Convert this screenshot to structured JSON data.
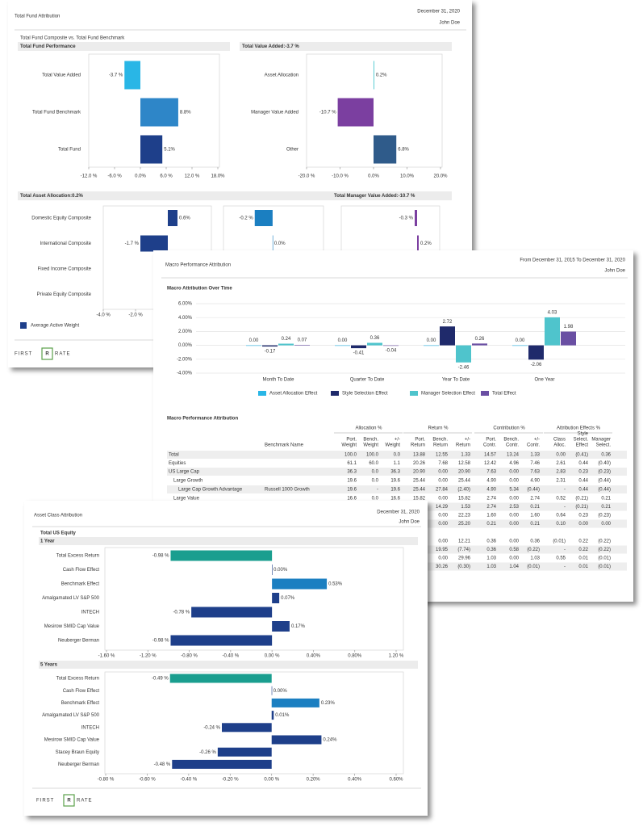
{
  "fund": {
    "title": "Total Fund Attribution",
    "date": "December 31, 2020",
    "name": "John Doe",
    "subtitle": "Total Fund Composite vs. Total Fund Benchmark",
    "performance": {
      "type": "hbar",
      "title": "Total Fund Performance",
      "categories": [
        "Total Value Added",
        "Total Fund Benchmark",
        "Total Fund"
      ],
      "values": [
        -3.7,
        8.8,
        5.1
      ],
      "value_labels": [
        "-3.7 %",
        "8.8%",
        "5.1%"
      ],
      "colors": [
        "#29b6e6",
        "#2e86c8",
        "#1e3f8a"
      ],
      "xlim": [
        -12,
        18
      ],
      "xticks": [
        {
          "value": -12,
          "label": "-12.0 %"
        },
        {
          "value": -6,
          "label": "-6.0 %"
        },
        {
          "value": 0,
          "label": "0.0%"
        },
        {
          "value": 6,
          "label": "6.0 %"
        },
        {
          "value": 12,
          "label": "12.0 %"
        },
        {
          "value": 18,
          "label": "18.0%"
        }
      ]
    },
    "value_added": {
      "type": "hbar",
      "title": "Total Value Added:-3.7 %",
      "categories": [
        "Asset Allocation",
        "Manager Value Added",
        "Other"
      ],
      "values": [
        0.2,
        -10.7,
        6.8
      ],
      "value_labels": [
        "0.2%",
        "-10.7 %",
        "6.8%"
      ],
      "colors": [
        "#3cc3cc",
        "#7b3fa0",
        "#2f5b8a"
      ],
      "xlim": [
        -20,
        20
      ],
      "xticks": [
        {
          "value": -20,
          "label": "-20.0 %"
        },
        {
          "value": -10,
          "label": "-10.0 %"
        },
        {
          "value": 0,
          "label": "0.0%"
        },
        {
          "value": 10,
          "label": "10.0%"
        },
        {
          "value": 20,
          "label": "20.0%"
        }
      ]
    },
    "allocation_title": "Total Asset Allocation:0.2%",
    "manager_title": "Total Manager Value Added:-10.7 %",
    "composites": {
      "categories": [
        "Domestic Equity Composite",
        "International Composite",
        "Fixed Income Composite",
        "Private Equity Composite"
      ],
      "panels": [
        {
          "type": "hbar",
          "values": [
            0.6,
            -1.7,
            null,
            null
          ],
          "value_labels": [
            "0.6%",
            "-1.7 %",
            null,
            null
          ],
          "color": "#1e3f8a",
          "xlim": [
            -4,
            2.7
          ],
          "xticks": [
            {
              "value": -4,
              "label": "-4.0 %"
            },
            {
              "value": -2,
              "label": "-2.0 %"
            }
          ]
        },
        {
          "type": "hbar",
          "values": [
            -0.2,
            0.0,
            null,
            null
          ],
          "value_labels": [
            "-0.2 %",
            "0.0%",
            null,
            null
          ],
          "color": "#1b7fc1",
          "xlim": [
            -0.55,
            0.57
          ]
        },
        {
          "type": "hbar",
          "values": [
            -0.3,
            0.2,
            null,
            null
          ],
          "value_labels": [
            "-0.3 %",
            "0.2%",
            null,
            null
          ],
          "color": "#7b3fa0",
          "xlim": [
            -9.4,
            2.8
          ]
        }
      ]
    },
    "legend": "Average Active Weight",
    "legend_color": "#1e3f8a",
    "logo": [
      "FIRST",
      "R",
      "RATE"
    ]
  },
  "macro": {
    "title": "Macro Performance Attribution",
    "date": "From December 31, 2015 To December 31, 2020",
    "name": "John Doe",
    "over_time": {
      "type": "bar",
      "title": "Macro Attribution Over Time",
      "categories": [
        "Month To Date",
        "Quarter To Date",
        "Year To Date",
        "One Year"
      ],
      "series": [
        {
          "name": "Asset Allocation Effect",
          "color": "#29b6e6",
          "values": [
            0,
            0,
            0,
            0
          ],
          "value_labels": [
            "0.00",
            "0.00",
            "0.00",
            "0.00"
          ]
        },
        {
          "name": "Style Selection Effect",
          "color": "#1f2a6b",
          "values": [
            -0.17,
            -0.41,
            2.72,
            -2.06
          ],
          "value_labels": [
            "-0.17",
            "-0.41",
            "2.72",
            "-2.06"
          ]
        },
        {
          "name": "Manager Selection Effect",
          "color": "#4fc4cc",
          "values": [
            0.24,
            0.36,
            -2.46,
            4.03
          ],
          "value_labels": [
            "0.24",
            "0.36",
            "-2.46",
            "4.03"
          ]
        },
        {
          "name": "Total Effect",
          "color": "#6a4fa3",
          "values": [
            0.07,
            -0.04,
            0.26,
            1.98
          ],
          "value_labels": [
            "0.07",
            "-0.04",
            "0.26",
            "1.98"
          ]
        }
      ],
      "ylim": [
        -4,
        6
      ],
      "yticks": [
        {
          "value": -4,
          "label": "-4.00%"
        },
        {
          "value": -2,
          "label": "-2.00%"
        },
        {
          "value": 0,
          "label": "0.00%"
        },
        {
          "value": 2,
          "label": "2.00%"
        },
        {
          "value": 4,
          "label": "4.00%"
        },
        {
          "value": 6,
          "label": "6.00%"
        }
      ],
      "grid": true
    },
    "table": {
      "title": "Macro Performance Attribution",
      "groups": [
        "Allocation %",
        "Return %",
        "Contribution %",
        "Attribution Effects %"
      ],
      "benchmark_header": "Benchmark Name",
      "columns": [
        [
          "Port.",
          "Weight"
        ],
        [
          "Bench.",
          "Weight"
        ],
        [
          "+/-",
          "Weight"
        ],
        [
          "Port.",
          "Return"
        ],
        [
          "Bench.",
          "Return"
        ],
        [
          "+/-",
          "Return"
        ],
        [
          "Port.",
          "Contr."
        ],
        [
          "Bench.",
          "Contr."
        ],
        [
          "+/-",
          "Contr."
        ],
        [
          "Class",
          "Alloc."
        ],
        [
          "Style",
          "Select.",
          "Effect"
        ],
        [
          "Manager",
          "Select."
        ]
      ],
      "rows": [
        {
          "label": "Total",
          "cells": [
            "100.0",
            "100.0",
            "0.0",
            "13.88",
            "12.55",
            "1.33",
            "14.57",
            "13.24",
            "1.33",
            "0.00",
            "(0.41)",
            "0.36"
          ]
        },
        {
          "label": "Equities",
          "cells": [
            "61.1",
            "60.0",
            "1.1",
            "20.26",
            "7.68",
            "12.58",
            "12.42",
            "4.96",
            "7.46",
            "2.61",
            "0.44",
            "(0.40)"
          ]
        },
        {
          "label": "US Large Cap",
          "cells": [
            "36.3",
            "0.0",
            "36.3",
            "20.90",
            "0.00",
            "20.90",
            "7.63",
            "0.00",
            "7.63",
            "2.83",
            "0.23",
            "(0.23)"
          ]
        },
        {
          "label": "Large Growth",
          "cells": [
            "19.6",
            "0.0",
            "19.6",
            "25.44",
            "0.00",
            "25.44",
            "4.90",
            "0.00",
            "4.90",
            "2.31",
            "0.44",
            "(0.44)"
          ]
        },
        {
          "label": "Large Cap Growth Advantage",
          "benchmark": "Russell 1000 Growth",
          "cells": [
            "19.6",
            "-",
            "19.6",
            "25.44",
            "27.84",
            "(2.40)",
            "4.90",
            "5.34",
            "(0.44)",
            "-",
            "0.44",
            "(0.44)"
          ]
        },
        {
          "label": "Large Value",
          "cells": [
            "16.6",
            "0.0",
            "16.6",
            "15.82",
            "0.00",
            "15.82",
            "2.74",
            "0.00",
            "2.74",
            "0.52",
            "(0.21)",
            "0.21"
          ]
        },
        {
          "cells": [
            "14.29",
            "1.53",
            "2.74",
            "2.53",
            "0.21",
            "-",
            "(0.21)",
            "0.21"
          ]
        },
        {
          "cells": [
            "0.00",
            "22.23",
            "1.60",
            "0.00",
            "1.60",
            "0.64",
            "0.23",
            "(0.23)"
          ]
        },
        {
          "cells": [
            "0.00",
            "25.20",
            "0.21",
            "0.00",
            "0.21",
            "0.10",
            "0.00",
            "0.00"
          ]
        },
        {
          "cells": [
            "0.00",
            "12.21",
            "0.36",
            "0.00",
            "0.36",
            "(0.01)",
            "0.22",
            "(0.22)"
          ]
        },
        {
          "cells": [
            "19.95",
            "(7.74)",
            "0.36",
            "0.58",
            "(0.22)",
            "-",
            "0.22",
            "(0.22)"
          ]
        },
        {
          "cells": [
            "0.00",
            "29.96",
            "1.03",
            "0.00",
            "1.03",
            "0.55",
            "0.01",
            "(0.01)"
          ]
        },
        {
          "cells": [
            "30.26",
            "(0.30)",
            "1.03",
            "1.04",
            "(0.01)",
            "-",
            "0.01",
            "(0.01)"
          ]
        }
      ]
    }
  },
  "asset_class": {
    "title": "Asset Class Attribution",
    "date": "December 31, 2020",
    "name": "John Doe",
    "group": "Total US Equity",
    "one_year": {
      "type": "hbar",
      "title": "1 Year",
      "categories": [
        "Total Excess Return",
        "Cash Flow Effect",
        "Benchmark Effect",
        "Amalgamated LV S&P 500",
        "INTECH",
        "Mesirow SMID Cap Value",
        "Neuberger Berman"
      ],
      "values": [
        -0.98,
        0.0,
        0.53,
        0.07,
        -0.78,
        0.17,
        -0.98
      ],
      "value_labels": [
        "-0.98 %",
        "0.00%",
        "0.53%",
        "0.07%",
        "-0.78 %",
        "0.17%",
        "-0.98 %"
      ],
      "colors": [
        "#1a9e8f",
        "#1e3f8a",
        "#1b7fc1",
        "#1e3f8a",
        "#1e3f8a",
        "#1e3f8a",
        "#1e3f8a"
      ],
      "xlim": [
        -1.6,
        1.2
      ],
      "xticks": [
        {
          "value": -1.6,
          "label": "-1.60 %"
        },
        {
          "value": -1.2,
          "label": "-1.20 %"
        },
        {
          "value": -0.8,
          "label": "-0.80 %"
        },
        {
          "value": -0.4,
          "label": "-0.40 %"
        },
        {
          "value": 0,
          "label": "0.00 %"
        },
        {
          "value": 0.4,
          "label": "0.40%"
        },
        {
          "value": 0.8,
          "label": "0.80%"
        },
        {
          "value": 1.2,
          "label": "1.20 %"
        }
      ]
    },
    "five_years": {
      "type": "hbar",
      "title": "5 Years",
      "categories": [
        "Total Excess Return",
        "Cash Flow Effect",
        "Benchmark Effect",
        "Amalgamated LV S&P 500",
        "INTECH",
        "Mesirow SMID Cap Value",
        "Stacey Braun Equity",
        "Neuberger Berman"
      ],
      "values": [
        -0.49,
        0.0,
        0.23,
        0.01,
        -0.24,
        0.24,
        -0.26,
        -0.48
      ],
      "value_labels": [
        "-0.49 %",
        "0.00%",
        "0.23%",
        "0.01%",
        "-0.24 %",
        "0.24%",
        "-0.26 %",
        "-0.48 %"
      ],
      "colors": [
        "#1a9e8f",
        "#1e3f8a",
        "#1b7fc1",
        "#1e3f8a",
        "#1e3f8a",
        "#1e3f8a",
        "#1e3f8a",
        "#1e3f8a"
      ],
      "xlim": [
        -0.8,
        0.6
      ],
      "xticks": [
        {
          "value": -0.8,
          "label": "-0.80 %"
        },
        {
          "value": -0.6,
          "label": "-0.60 %"
        },
        {
          "value": -0.4,
          "label": "-0.40 %"
        },
        {
          "value": -0.2,
          "label": "-0.20 %"
        },
        {
          "value": 0,
          "label": "0.00 %"
        },
        {
          "value": 0.2,
          "label": "0.20%"
        },
        {
          "value": 0.4,
          "label": "0.40%"
        },
        {
          "value": 0.6,
          "label": "0.60%"
        }
      ]
    },
    "logo": [
      "FIRST",
      "R",
      "RATE"
    ]
  }
}
